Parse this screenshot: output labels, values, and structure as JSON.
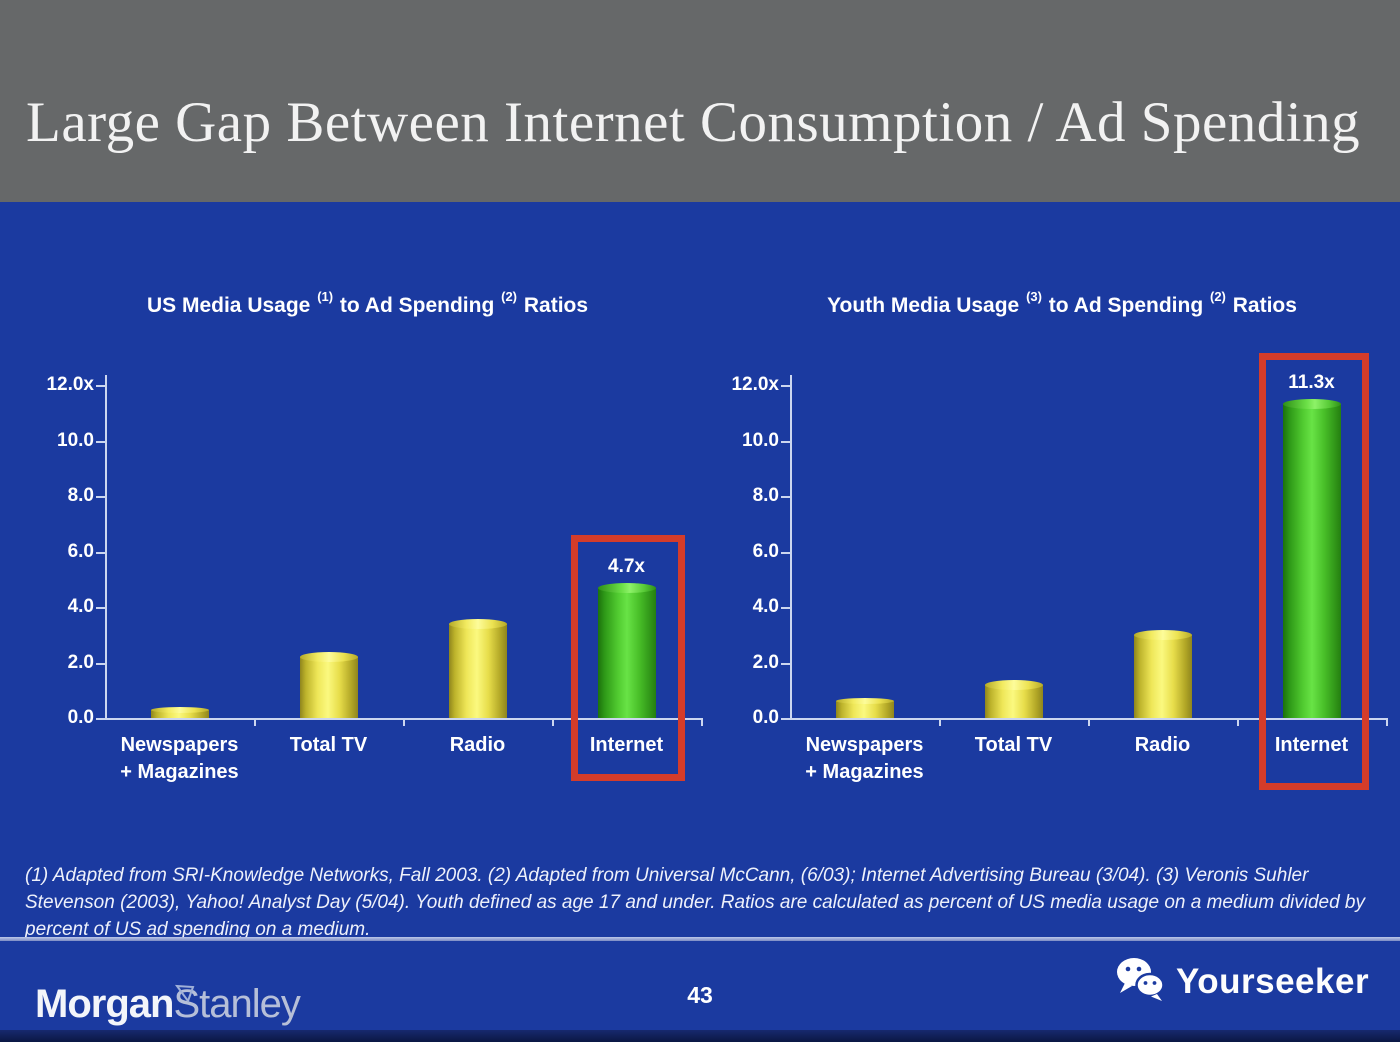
{
  "header": {
    "title": "Large Gap Between Internet Consumption / Ad Spending"
  },
  "footnote": "(1) Adapted from SRI-Knowledge Networks, Fall 2003.  (2) Adapted from Universal McCann, (6/03); Internet Advertising Bureau (3/04). (3) Veronis Suhler Stevenson (2003), Yahoo! Analyst Day (5/04).  Youth defined as age 17 and under.  Ratios are calculated as percent of US media usage on a medium divided by percent of US ad spending on a medium.",
  "footer": {
    "page_number": "43",
    "brand_left": {
      "word1": "Morgan",
      "word2": "Stanley",
      "icon": "triangle-logo-icon"
    },
    "brand_right": {
      "label": "Yourseeker",
      "icon": "wechat-icon"
    }
  },
  "colors": {
    "header_bg": "#666869",
    "body_bg": "#1b3aa0",
    "bar_yellow_mid": "#fbf97f",
    "bar_yellow_edge": "#8f851d",
    "bar_green_mid": "#68e346",
    "bar_green_edge": "#1c720c",
    "highlight_red": "#d43c2a",
    "axis": "#ccd6ef"
  },
  "chart_data": [
    {
      "type": "bar",
      "title": "US Media Usage (1) to Ad Spending (2) Ratios",
      "title_parts": [
        {
          "t": "US Media Usage "
        },
        {
          "sup": "(1)"
        },
        {
          "t": " to Ad Spending "
        },
        {
          "sup": "(2)"
        },
        {
          "t": " Ratios"
        }
      ],
      "categories": [
        "Newspapers\n+ Magazines",
        "Total TV",
        "Radio",
        "Internet"
      ],
      "values": [
        0.3,
        2.2,
        3.4,
        4.7
      ],
      "bar_labels": [
        "",
        "",
        "",
        "4.7x"
      ],
      "bar_colors": [
        "yellow",
        "yellow",
        "yellow",
        "green"
      ],
      "highlight_index": 3,
      "y_ticks": [
        "12.0x",
        "10.0",
        "8.0",
        "6.0",
        "4.0",
        "2.0",
        "0.0"
      ],
      "ylim": [
        0,
        12
      ],
      "xlabel": "",
      "ylabel": "",
      "grid": false,
      "legend": false
    },
    {
      "type": "bar",
      "title": "Youth Media Usage (3) to Ad Spending (2) Ratios",
      "title_parts": [
        {
          "t": "Youth Media Usage "
        },
        {
          "sup": "(3)"
        },
        {
          "t": " to Ad Spending "
        },
        {
          "sup": "(2)"
        },
        {
          "t": " Ratios"
        }
      ],
      "categories": [
        "Newspapers\n+ Magazines",
        "Total TV",
        "Radio",
        "Internet"
      ],
      "values": [
        0.6,
        1.2,
        3.0,
        11.3
      ],
      "bar_labels": [
        "",
        "",
        "",
        "11.3x"
      ],
      "bar_colors": [
        "yellow",
        "yellow",
        "yellow",
        "green"
      ],
      "highlight_index": 3,
      "y_ticks": [
        "12.0x",
        "10.0",
        "8.0",
        "6.0",
        "4.0",
        "2.0",
        "0.0"
      ],
      "ylim": [
        0,
        12
      ],
      "xlabel": "",
      "ylabel": "",
      "grid": false,
      "legend": false
    }
  ]
}
